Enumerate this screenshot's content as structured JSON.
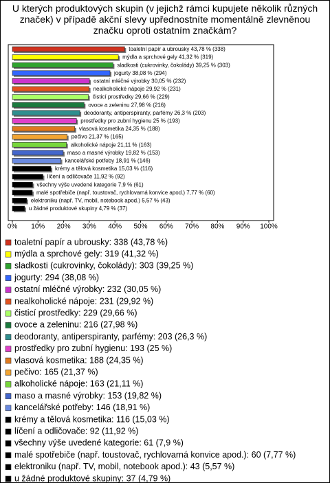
{
  "chart_data": {
    "type": "bar",
    "orientation": "horizontal",
    "title": "U kterých produktových skupin (v jejichž rámci kupujete několik různých značek) v případě akční slevy upřednostníte momentálně zlevněnou značku oproti ostatním značkám?",
    "values": [
      43.78,
      41.32,
      39.25,
      38.08,
      30.05,
      29.92,
      29.66,
      27.98,
      26.3,
      25,
      24.35,
      21.37,
      21.11,
      19.82,
      18.91,
      15.03,
      11.92,
      7.9,
      7.77,
      5.57,
      4.79
    ],
    "value_labels": [
      "toaletní papír a ubrousky 43,78 % (338)",
      "mýdla a sprchové gely 41,32 % (319)",
      "sladkosti (cukrovinky, čokolády) 39,25 % (303)",
      "jogurty 38,08 % (294)",
      "ostatní mléčné výrobky 30,05 % (232)",
      "nealkoholické nápoje 29,92 % (231)",
      "čisticí prostředky 29,66 % (229)",
      "ovoce a zeleninu 27,98 % (216)",
      "deodoranty, antiperspiranty, parfémy 26,3 % (203)",
      "prostředky pro zubní hygienu 25 % (193)",
      "vlasová kosmetika 24,35 % (188)",
      "pečivo 21,37 % (165)",
      "alkoholické nápoje 21,11 % (163)",
      "maso a masné výrobky 19,82 % (153)",
      "kancelářské potřeby 18,91 % (146)",
      "krémy a tělová kosmetika 15,03 % (116)",
      "líčení a odličovače 11,92 % (92)",
      "všechny výše uvedené kategorie 7,9 % (61)",
      "malé spotřebiče (např. toustovač, rychlovarná konvice apod.) 7,77 % (60)",
      "elektroniku (např. TV, mobil, notebook apod.) 5,57 % (43)",
      "u žádné produktové skupiny 4,79 % (37)"
    ],
    "legend_labels": [
      "toaletní papír a ubrousky: 338 (43,78 %)",
      "mýdla a sprchové gely: 319 (41,32 %)",
      "sladkosti (cukrovinky, čokolády): 303 (39,25 %)",
      "jogurty: 294 (38,08 %)",
      "ostatní mléčné výrobky: 232 (30,05 %)",
      "nealkoholické nápoje: 231 (29,92 %)",
      "čisticí prostředky: 229 (29,66 %)",
      "ovoce a zeleninu: 216 (27,98 %)",
      "deodoranty, antiperspiranty, parfémy: 203 (26,3 %)",
      "prostředky pro zubní hygienu: 193 (25 %)",
      "vlasová kosmetika: 188 (24,35 %)",
      "pečivo: 165 (21,37 %)",
      "alkoholické nápoje: 163 (21,11 %)",
      "maso a masné výrobky: 153 (19,82 %)",
      "kancelářské potřeby: 146 (18,91 %)",
      "krémy a tělová kosmetika: 116 (15,03 %)",
      "líčení a odličovače: 92 (11,92 %)",
      "všechny výše uvedené kategorie: 61 (7,9 %)",
      "malé spotřebiče (např. toustovač, rychlovarná konvice apod.): 60 (7,77 %)",
      "elektroniku (např. TV, mobil, notebook apod.): 43 (5,57 %)",
      "u žádné produktové skupiny: 37 (4,79 %)"
    ],
    "colors": [
      "#d0321e",
      "#ffff00",
      "#2ea32e",
      "#3366ff",
      "#cc33cc",
      "#e2531f",
      "#aaff66",
      "#1b7a3e",
      "#2f8f8f",
      "#e040c8",
      "#e07a1f",
      "#f2a533",
      "#77d63a",
      "#4466cc",
      "#6a8ae0",
      "#000000",
      "#000000",
      "#000000",
      "#000000",
      "#000000",
      "#000000"
    ],
    "xlim": [
      0,
      100
    ],
    "xticks": [
      {
        "value": 0,
        "label": "0%"
      },
      {
        "value": 10,
        "label": "10%"
      },
      {
        "value": 20,
        "label": "20%"
      },
      {
        "value": 30,
        "label": "30%"
      },
      {
        "value": 40,
        "label": "40%"
      },
      {
        "value": 50,
        "label": "50%"
      },
      {
        "value": 60,
        "label": "60%"
      },
      {
        "value": 70,
        "label": "70%"
      },
      {
        "value": 80,
        "label": "80%"
      },
      {
        "value": 90,
        "label": "90%"
      },
      {
        "value": 100,
        "label": "100%"
      }
    ]
  }
}
